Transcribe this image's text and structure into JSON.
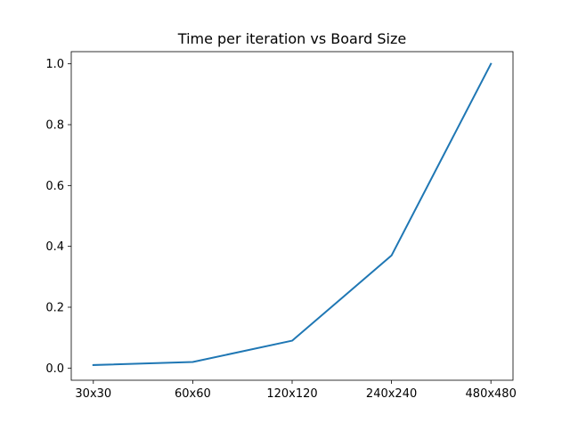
{
  "chart_data": {
    "type": "line",
    "title": "Time per iteration vs Board Size",
    "xlabel": "",
    "ylabel": "",
    "categories": [
      "30x30",
      "60x60",
      "120x120",
      "240x240",
      "480x480"
    ],
    "series": [
      {
        "values": [
          0.01,
          0.02,
          0.09,
          0.37,
          1.0
        ],
        "color": "#1f77b4"
      }
    ],
    "ylim": [
      -0.04,
      1.04
    ],
    "yticks": [
      0.0,
      0.2,
      0.4,
      0.6,
      0.8,
      1.0
    ],
    "ytick_labels": [
      "0.0",
      "0.2",
      "0.4",
      "0.6",
      "0.8",
      "1.0"
    ],
    "grid": false,
    "legend": "none"
  }
}
